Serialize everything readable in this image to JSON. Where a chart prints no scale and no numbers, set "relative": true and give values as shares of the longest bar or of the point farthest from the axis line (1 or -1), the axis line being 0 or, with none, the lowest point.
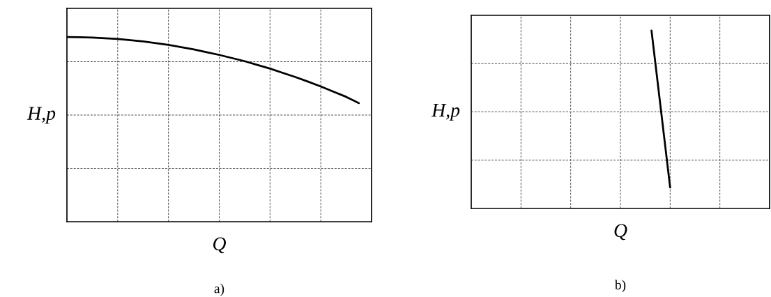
{
  "chart_data": [
    {
      "type": "line",
      "relative": true,
      "xlabel": "Q",
      "ylabel": "H,p",
      "annotations": [
        "a)"
      ],
      "grid": true,
      "marker": "none",
      "line_style": "solid",
      "categories": [
        null,
        null,
        null,
        null,
        null,
        null,
        null,
        null,
        null,
        null,
        null,
        null,
        null,
        null,
        null,
        null,
        null,
        null,
        null,
        null,
        null,
        null,
        null,
        null,
        null
      ],
      "series": [
        {
          "color": "#000000",
          "values": [
            1.0,
            0.999,
            0.997,
            0.993,
            0.989,
            0.983,
            0.976,
            0.967,
            0.957,
            0.945,
            0.933,
            0.918,
            0.903,
            0.886,
            0.869,
            0.849,
            0.829,
            0.806,
            0.783,
            0.758,
            0.732,
            0.704,
            0.676,
            0.642,
            null
          ]
        }
      ]
    },
    {
      "type": "line",
      "relative": true,
      "xlabel": "Q",
      "ylabel": "H,p",
      "annotations": [
        "b)"
      ],
      "grid": true,
      "marker": "none",
      "line_style": "solid",
      "categories": [
        null,
        null,
        null,
        null,
        null,
        null,
        null,
        null,
        null,
        null,
        null,
        null,
        null,
        null,
        null,
        null,
        null,
        null,
        null,
        null,
        null,
        null,
        null,
        null,
        null,
        null,
        null,
        null,
        null,
        null,
        null,
        null,
        null,
        null,
        null,
        null,
        null,
        null,
        null,
        null,
        null,
        null,
        null,
        null,
        null,
        null,
        null,
        null,
        null
      ],
      "series": [
        {
          "color": "#000000",
          "values": [
            null,
            null,
            null,
            null,
            null,
            null,
            null,
            null,
            null,
            null,
            null,
            null,
            null,
            null,
            null,
            null,
            null,
            null,
            null,
            null,
            null,
            null,
            null,
            null,
            null,
            null,
            null,
            null,
            null,
            1.0,
            0.706,
            0.412,
            0.118,
            null,
            null,
            null,
            null,
            null,
            null,
            null,
            null,
            null,
            null,
            null,
            null,
            null,
            null,
            null,
            null
          ]
        }
      ]
    }
  ]
}
